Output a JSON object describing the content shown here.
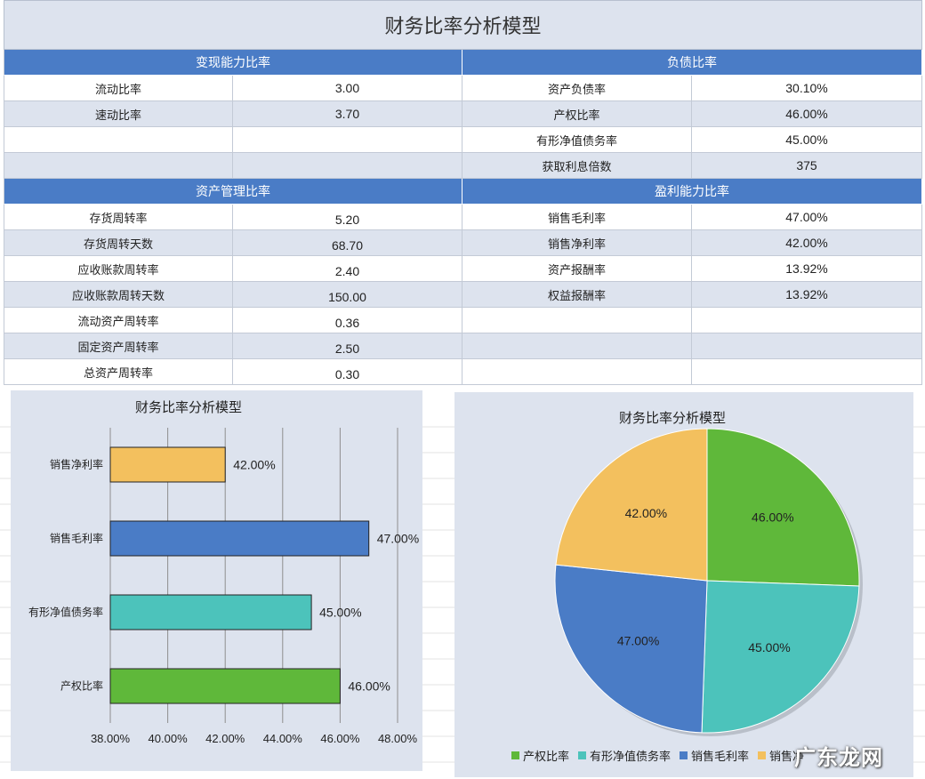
{
  "report": {
    "title": "财务比率分析模型",
    "sections": {
      "liquidity": {
        "header": "变现能力比率",
        "rows": [
          {
            "label": "流动比率",
            "value": "3.00"
          },
          {
            "label": "速动比率",
            "value": "3.70"
          },
          {
            "label": "",
            "value": ""
          },
          {
            "label": "",
            "value": ""
          }
        ]
      },
      "debt": {
        "header": "负债比率",
        "rows": [
          {
            "label": "资产负债率",
            "value": "30.10%"
          },
          {
            "label": "产权比率",
            "value": "46.00%"
          },
          {
            "label": "有形净值债务率",
            "value": "45.00%"
          },
          {
            "label": "获取利息倍数",
            "value": "375"
          }
        ]
      },
      "asset_mgmt": {
        "header": "资产管理比率",
        "rows": [
          {
            "label": "存货周转率",
            "value": "5.20"
          },
          {
            "label": "存货周转天数",
            "value": "68.70"
          },
          {
            "label": "应收账款周转率",
            "value": "2.40"
          },
          {
            "label": "应收账款周转天数",
            "value": "150.00"
          },
          {
            "label": "流动资产周转率",
            "value": "0.36"
          },
          {
            "label": "固定资产周转率",
            "value": "2.50"
          },
          {
            "label": "总资产周转率",
            "value": "0.30"
          }
        ]
      },
      "profitability": {
        "header": "盈利能力比率",
        "rows": [
          {
            "label": "销售毛利率",
            "value": "47.00%"
          },
          {
            "label": "销售净利率",
            "value": "42.00%"
          },
          {
            "label": "资产报酬率",
            "value": "13.92%"
          },
          {
            "label": "权益报酬率",
            "value": "13.92%"
          },
          {
            "label": "",
            "value": ""
          },
          {
            "label": "",
            "value": ""
          },
          {
            "label": "",
            "value": ""
          }
        ]
      }
    }
  },
  "chart_data": [
    {
      "type": "bar",
      "orientation": "horizontal",
      "title": "财务比率分析模型",
      "categories": [
        "产权比率",
        "有形净值债务率",
        "销售毛利率",
        "销售净利率"
      ],
      "values": [
        46.0,
        45.0,
        47.0,
        42.0
      ],
      "value_labels": [
        "46.00%",
        "45.00%",
        "47.00%",
        "42.00%"
      ],
      "colors": [
        "#5fb83a",
        "#4cc3bb",
        "#4a7cc6",
        "#f3c05e"
      ],
      "xlim": [
        38,
        48
      ],
      "xticks": [
        "38.00%",
        "40.00%",
        "42.00%",
        "44.00%",
        "46.00%",
        "48.00%"
      ],
      "grid": true
    },
    {
      "type": "pie",
      "title": "财务比率分析模型",
      "labels": [
        "产权比率",
        "有形净值债务率",
        "销售毛利率",
        "销售净利率"
      ],
      "values": [
        46.0,
        45.0,
        47.0,
        42.0
      ],
      "value_labels": [
        "46.00%",
        "45.00%",
        "47.00%",
        "42.00%"
      ],
      "colors": [
        "#5fb83a",
        "#4cc3bb",
        "#4a7cc6",
        "#f3c05e"
      ],
      "legend": [
        "产权比率",
        "有形净值债务率",
        "销售毛利率",
        "销售净"
      ],
      "legend_position": "bottom"
    }
  ],
  "watermark": "广东龙网"
}
